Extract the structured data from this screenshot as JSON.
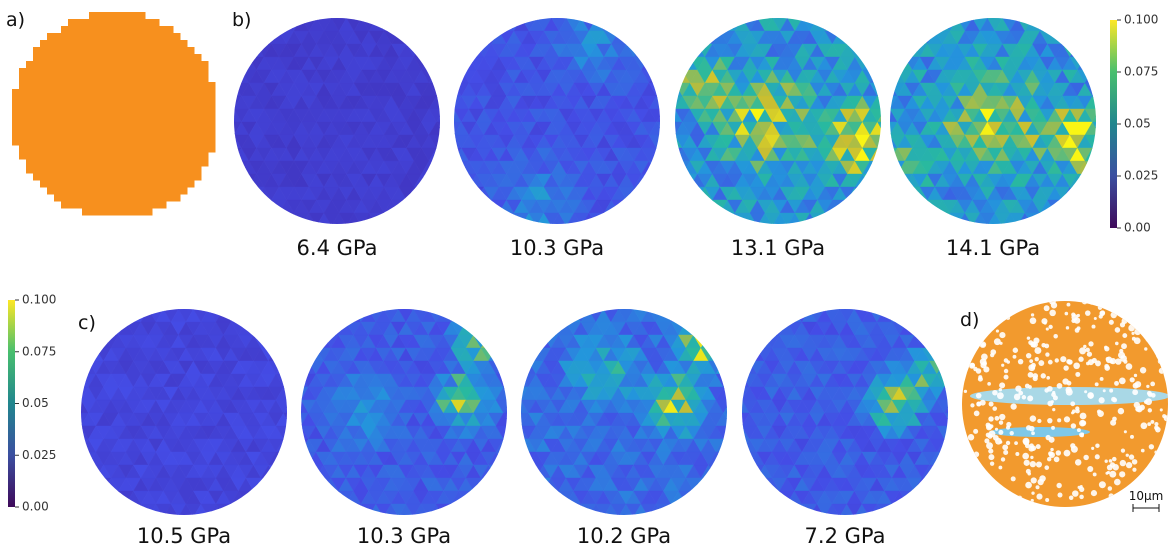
{
  "panel_labels": [
    "a)",
    "b)",
    "c)",
    "d)"
  ],
  "colorbar": {
    "lim": [
      0,
      0.1
    ],
    "ticks": [
      {
        "value": 0,
        "label": "0.00"
      },
      0.025,
      0.05,
      0.075,
      {
        "value": 0.1,
        "label": "0.100"
      }
    ]
  },
  "row_b": {
    "pressures": [
      "6.4 GPa",
      "10.3 GPa",
      "13.1 GPa",
      "14.1 GPa"
    ]
  },
  "row_c": {
    "pressures": [
      "10.5 GPa",
      "10.3 GPa",
      "10.2 GPa",
      "7.2 GPa"
    ]
  },
  "scale_bar": "10µm"
}
